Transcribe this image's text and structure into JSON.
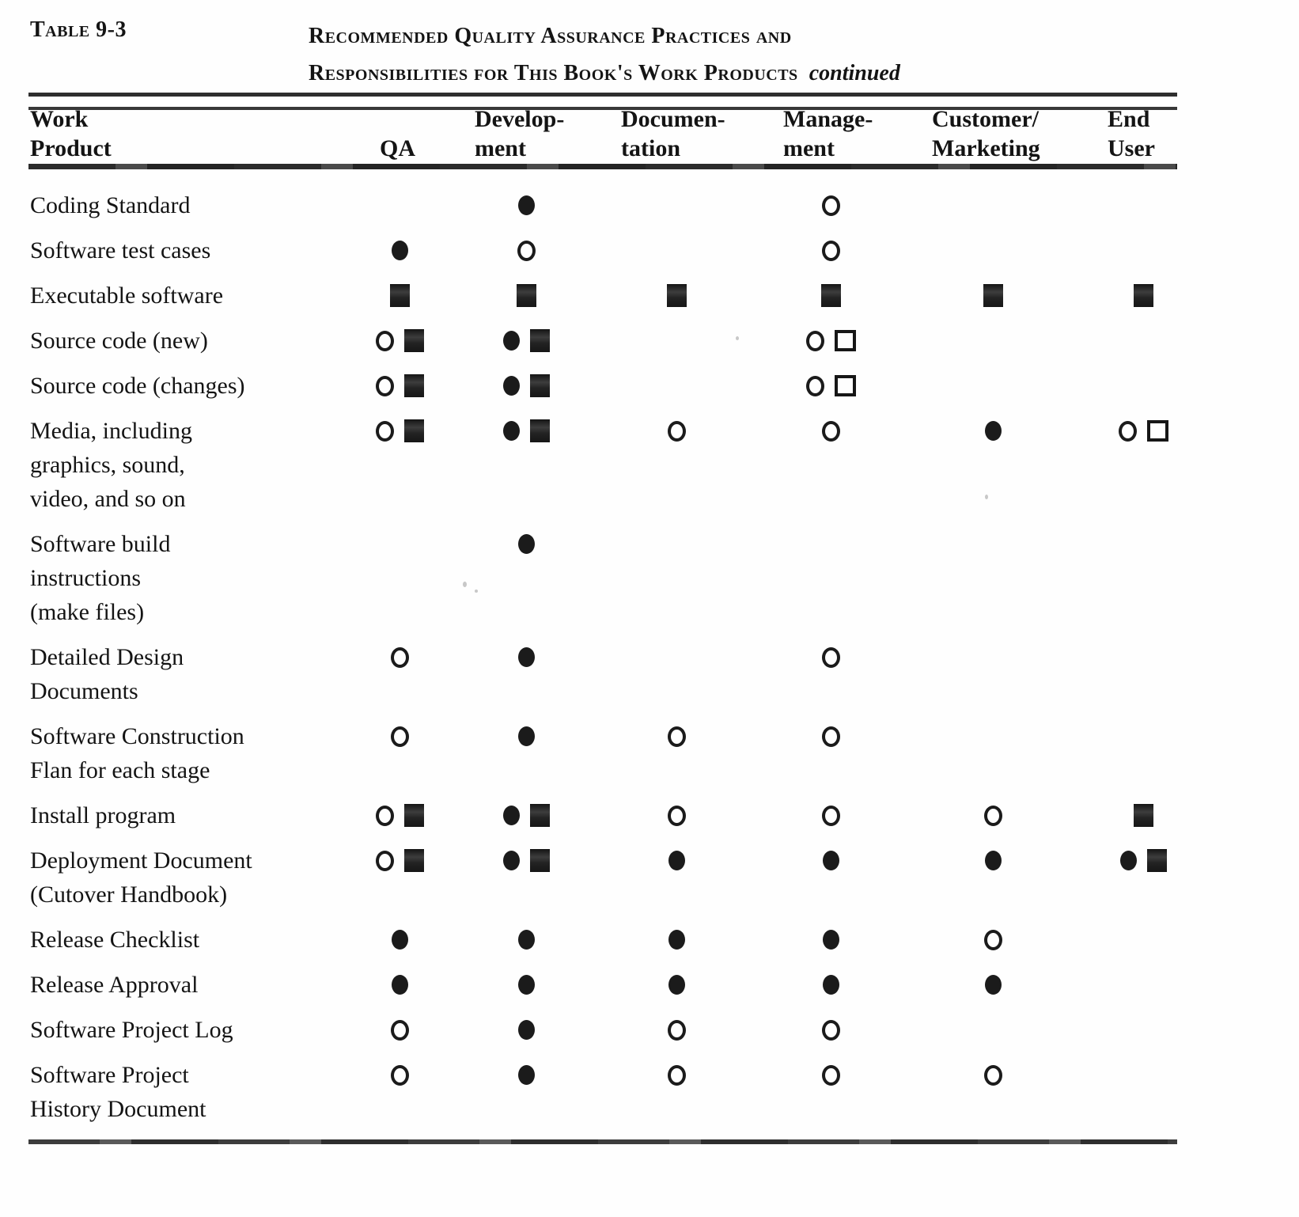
{
  "page": {
    "tag": "Table 9-3",
    "title_line1": "Recommended Quality Assurance Practices and",
    "title_line2": "Responsibilities for This Book's Work Products",
    "title_suffix": "continued"
  },
  "colors": {
    "ink": "#1b1b1b",
    "paper": "#fefefe"
  },
  "symbols": [
    "filled-circle",
    "open-circle",
    "filled-square",
    "open-square"
  ],
  "table": {
    "header": {
      "work_product": [
        "Work",
        "Product"
      ],
      "columns": [
        {
          "id": "qa",
          "lines": [
            "QA"
          ]
        },
        {
          "id": "development",
          "lines": [
            "Develop-",
            "ment"
          ]
        },
        {
          "id": "documentation",
          "lines": [
            "Documen-",
            "tation"
          ]
        },
        {
          "id": "management",
          "lines": [
            "Manage-",
            "ment"
          ]
        },
        {
          "id": "customer_marketing",
          "lines": [
            "Customer/",
            "Marketing"
          ]
        },
        {
          "id": "end_user",
          "lines": [
            "End",
            "User"
          ]
        }
      ]
    },
    "rows": [
      {
        "label_lines": [
          "Coding Standard"
        ],
        "cells": [
          [],
          [
            "filled-circle"
          ],
          [],
          [
            "open-circle"
          ],
          [],
          []
        ]
      },
      {
        "label_lines": [
          "Software test cases"
        ],
        "cells": [
          [
            "filled-circle"
          ],
          [
            "open-circle"
          ],
          [],
          [
            "open-circle"
          ],
          [],
          []
        ]
      },
      {
        "label_lines": [
          "Executable software"
        ],
        "cells": [
          [
            "filled-square"
          ],
          [
            "filled-square"
          ],
          [
            "filled-square"
          ],
          [
            "filled-square"
          ],
          [
            "filled-square"
          ],
          [
            "filled-square"
          ]
        ]
      },
      {
        "label_lines": [
          "Source code (new)"
        ],
        "cells": [
          [
            "open-circle",
            "filled-square"
          ],
          [
            "filled-circle",
            "filled-square"
          ],
          [],
          [
            "open-circle",
            "open-square"
          ],
          [],
          []
        ]
      },
      {
        "label_lines": [
          "Source code (changes)"
        ],
        "cells": [
          [
            "open-circle",
            "filled-square"
          ],
          [
            "filled-circle",
            "filled-square"
          ],
          [],
          [
            "open-circle",
            "open-square"
          ],
          [],
          []
        ]
      },
      {
        "label_lines": [
          "Media, including",
          "graphics, sound,",
          "video, and so on"
        ],
        "cells": [
          [
            "open-circle",
            "filled-square"
          ],
          [
            "filled-circle",
            "filled-square"
          ],
          [
            "open-circle"
          ],
          [
            "open-circle"
          ],
          [
            "filled-circle"
          ],
          [
            "open-circle",
            "open-square"
          ]
        ]
      },
      {
        "label_lines": [
          "Software build",
          "instructions",
          "(make files)"
        ],
        "cells": [
          [],
          [
            "filled-circle"
          ],
          [],
          [],
          [],
          []
        ]
      },
      {
        "label_lines": [
          "Detailed Design",
          "Documents"
        ],
        "cells": [
          [
            "open-circle"
          ],
          [
            "filled-circle"
          ],
          [],
          [
            "open-circle"
          ],
          [],
          []
        ]
      },
      {
        "label_lines": [
          "Software Construction",
          "Flan for each stage"
        ],
        "cells": [
          [
            "open-circle"
          ],
          [
            "filled-circle"
          ],
          [
            "open-circle"
          ],
          [
            "open-circle"
          ],
          [],
          []
        ]
      },
      {
        "label_lines": [
          "Install program"
        ],
        "cells": [
          [
            "open-circle",
            "filled-square"
          ],
          [
            "filled-circle",
            "filled-square"
          ],
          [
            "open-circle"
          ],
          [
            "open-circle"
          ],
          [
            "open-circle"
          ],
          [
            "filled-square"
          ]
        ]
      },
      {
        "label_lines": [
          "Deployment Document",
          "(Cutover Handbook)"
        ],
        "cells": [
          [
            "open-circle",
            "filled-square"
          ],
          [
            "filled-circle",
            "filled-square"
          ],
          [
            "filled-circle"
          ],
          [
            "filled-circle"
          ],
          [
            "filled-circle"
          ],
          [
            "filled-circle",
            "filled-square"
          ]
        ]
      },
      {
        "label_lines": [
          "Release Checklist"
        ],
        "cells": [
          [
            "filled-circle"
          ],
          [
            "filled-circle"
          ],
          [
            "filled-circle"
          ],
          [
            "filled-circle"
          ],
          [
            "open-circle"
          ],
          []
        ]
      },
      {
        "label_lines": [
          "Release Approval"
        ],
        "cells": [
          [
            "filled-circle"
          ],
          [
            "filled-circle"
          ],
          [
            "filled-circle"
          ],
          [
            "filled-circle"
          ],
          [
            "filled-circle"
          ],
          []
        ]
      },
      {
        "label_lines": [
          "Software Project Log"
        ],
        "cells": [
          [
            "open-circle"
          ],
          [
            "filled-circle"
          ],
          [
            "open-circle"
          ],
          [
            "open-circle"
          ],
          [],
          []
        ]
      },
      {
        "label_lines": [
          "Software Project",
          "History Document"
        ],
        "cells": [
          [
            "open-circle"
          ],
          [
            "filled-circle"
          ],
          [
            "open-circle"
          ],
          [
            "open-circle"
          ],
          [
            "open-circle"
          ],
          []
        ]
      }
    ]
  }
}
